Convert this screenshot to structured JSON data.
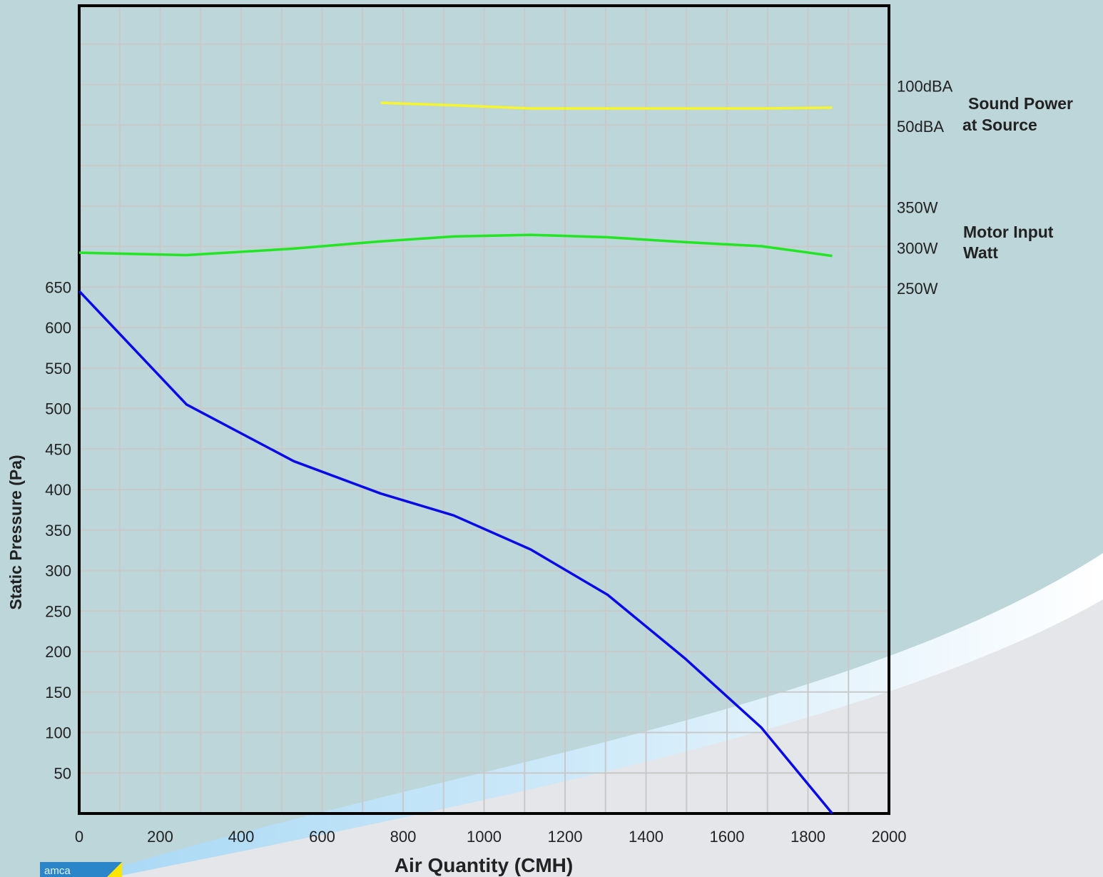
{
  "chart_data": {
    "type": "line",
    "xlabel": "Air Quantity (CMH)",
    "ylabel": "Static Pressure (Pa)",
    "xlim": [
      0,
      2000
    ],
    "ylim": [
      0,
      650
    ],
    "x_ticks": [
      "0",
      "200",
      "400",
      "600",
      "800",
      "1000",
      "1200",
      "1400",
      "1600",
      "1800",
      "2000"
    ],
    "y_ticks": [
      "50",
      "100",
      "150",
      "200",
      "250",
      "300",
      "350",
      "400",
      "450",
      "500",
      "550",
      "600",
      "650"
    ],
    "grid": true,
    "series": [
      {
        "axis": "pressure",
        "color": "#0a0ae6",
        "x": [
          0,
          265,
          530,
          745,
          925,
          1115,
          1305,
          1495,
          1685,
          1860
        ],
        "y": [
          645,
          505,
          435,
          395,
          368,
          326,
          270,
          192,
          106,
          0
        ]
      },
      {
        "axis": "power",
        "color": "#22e622",
        "x": [
          0,
          265,
          530,
          745,
          925,
          1115,
          1305,
          1495,
          1685,
          1860
        ],
        "y": [
          294,
          291,
          299,
          308,
          314,
          316,
          313,
          307,
          302,
          290
        ]
      },
      {
        "axis": "sound",
        "color": "#f5f52a",
        "x": [
          745,
          925,
          1115,
          1305,
          1495,
          1685,
          1860
        ],
        "y": [
          79,
          76,
          72,
          72,
          72,
          72,
          73
        ]
      }
    ],
    "power_axis": {
      "ticks": [
        "250W",
        "300W",
        "350W"
      ],
      "title_lines": [
        "Motor Input",
        "Watt"
      ]
    },
    "sound_axis": {
      "ticks": [
        "50dBA",
        "100dBA"
      ],
      "title_lines": [
        "Sound Power",
        "at Source"
      ]
    }
  },
  "logo": {
    "text": "amca"
  }
}
